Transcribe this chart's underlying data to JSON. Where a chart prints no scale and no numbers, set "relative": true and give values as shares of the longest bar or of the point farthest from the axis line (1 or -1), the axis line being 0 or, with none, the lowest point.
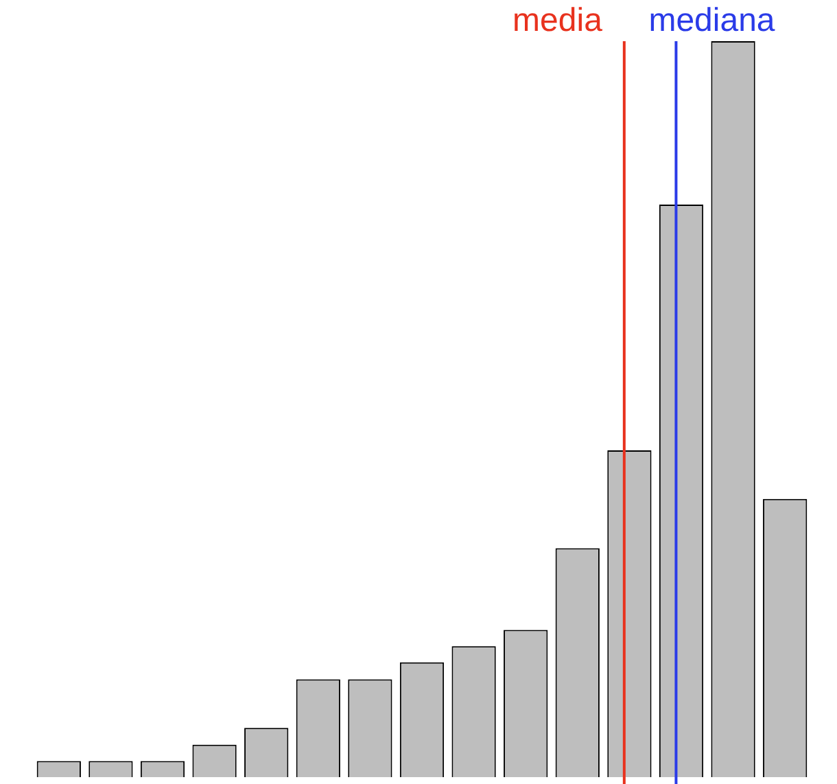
{
  "chart_data": {
    "type": "bar",
    "relative": true,
    "categories": [
      null,
      null,
      null,
      null,
      null,
      null,
      null,
      null,
      null,
      null,
      null,
      null,
      null,
      null,
      null
    ],
    "values": [
      0.022,
      0.022,
      0.022,
      0.044,
      0.067,
      0.133,
      0.133,
      0.156,
      0.178,
      0.2,
      0.311,
      0.444,
      0.778,
      1,
      0.378
    ],
    "color": "#bebebe",
    "annotations": [
      "media",
      "mediana"
    ]
  }
}
